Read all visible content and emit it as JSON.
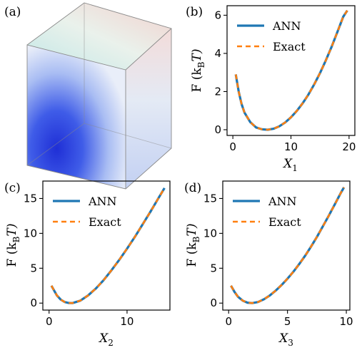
{
  "panels": [
    {
      "label": "(a)"
    },
    {
      "label": "(b)"
    },
    {
      "label": "(c)"
    },
    {
      "label": "(d)"
    }
  ],
  "colors": {
    "ann": "#1f77b4",
    "exact": "#ff7f0e"
  },
  "chart_data": [
    {
      "type": "heatmap",
      "panel": "(a)",
      "description_visible": "3D cube volume render, blue low region bottom-front, red/white high region top-back"
    },
    {
      "type": "line",
      "panel": "(b)",
      "xlabel": "X",
      "xlabel_sub": "1",
      "ylabel": "F (k",
      "ylabel_sub": "B",
      "ylabel_tail": "T)",
      "xlim": [
        -1,
        21
      ],
      "ylim": [
        -0.3,
        6.5
      ],
      "xticks": [
        0,
        10,
        20
      ],
      "yticks": [
        0,
        2,
        4,
        6
      ],
      "legend": [
        "ANN",
        "Exact"
      ],
      "series": [
        {
          "name": "ANN",
          "x": [
            0.5,
            1,
            1.5,
            2,
            3,
            4,
            5,
            6,
            7,
            8,
            9,
            10,
            11,
            12,
            13,
            14,
            15,
            16,
            17,
            18,
            19,
            19.7
          ],
          "y": [
            2.9,
            2.0,
            1.35,
            0.9,
            0.4,
            0.12,
            0.02,
            0.0,
            0.05,
            0.18,
            0.38,
            0.65,
            0.98,
            1.38,
            1.84,
            2.37,
            2.97,
            3.63,
            4.35,
            5.13,
            5.92,
            6.25
          ]
        },
        {
          "name": "Exact",
          "x": [
            0.5,
            1,
            1.5,
            2,
            3,
            4,
            5,
            6,
            7,
            8,
            9,
            10,
            11,
            12,
            13,
            14,
            15,
            16,
            17,
            18,
            19,
            19.7
          ],
          "y": [
            2.9,
            2.0,
            1.35,
            0.9,
            0.4,
            0.12,
            0.02,
            0.0,
            0.05,
            0.18,
            0.38,
            0.65,
            0.98,
            1.38,
            1.84,
            2.37,
            2.97,
            3.63,
            4.35,
            5.13,
            5.92,
            6.25
          ]
        }
      ]
    },
    {
      "type": "line",
      "panel": "(c)",
      "xlabel": "X",
      "xlabel_sub": "2",
      "ylabel": "F (k",
      "ylabel_sub": "B",
      "ylabel_tail": "T)",
      "xlim": [
        -0.8,
        15.5
      ],
      "ylim": [
        -1,
        17.5
      ],
      "xticks": [
        0,
        10
      ],
      "yticks": [
        0,
        5,
        10,
        15
      ],
      "legend": [
        "ANN",
        "Exact"
      ],
      "series": [
        {
          "name": "ANN",
          "x": [
            0.3,
            0.7,
            1,
            1.5,
            2,
            2.5,
            3,
            4,
            5,
            6,
            7,
            8,
            9,
            10,
            11,
            12,
            13,
            14,
            14.8
          ],
          "y": [
            2.5,
            1.7,
            1.1,
            0.5,
            0.15,
            0.02,
            0.0,
            0.35,
            1.1,
            2.1,
            3.3,
            4.7,
            6.2,
            7.8,
            9.5,
            11.3,
            13.1,
            15.0,
            16.5
          ]
        },
        {
          "name": "Exact",
          "x": [
            0.3,
            0.7,
            1,
            1.5,
            2,
            2.5,
            3,
            4,
            5,
            6,
            7,
            8,
            9,
            10,
            11,
            12,
            13,
            14,
            14.8
          ],
          "y": [
            2.5,
            1.7,
            1.1,
            0.5,
            0.15,
            0.02,
            0.0,
            0.35,
            1.1,
            2.1,
            3.3,
            4.7,
            6.2,
            7.8,
            9.5,
            11.3,
            13.1,
            15.0,
            16.5
          ]
        }
      ]
    },
    {
      "type": "line",
      "panel": "(d)",
      "xlabel": "X",
      "xlabel_sub": "3",
      "ylabel": "F (k",
      "ylabel_sub": "B",
      "ylabel_tail": "T)",
      "xlim": [
        -0.5,
        10.3
      ],
      "ylim": [
        -1,
        17.5
      ],
      "xticks": [
        0,
        5,
        10
      ],
      "yticks": [
        0,
        5,
        10,
        15
      ],
      "legend": [
        "ANN",
        "Exact"
      ],
      "series": [
        {
          "name": "ANN",
          "x": [
            0.2,
            0.5,
            0.8,
            1.2,
            1.6,
            2,
            2.5,
            3,
            3.5,
            4,
            4.5,
            5,
            5.5,
            6,
            6.5,
            7,
            7.5,
            8,
            8.5,
            9,
            9.5,
            9.8
          ],
          "y": [
            2.5,
            1.6,
            0.9,
            0.35,
            0.06,
            0.0,
            0.15,
            0.55,
            1.1,
            1.8,
            2.6,
            3.5,
            4.5,
            5.6,
            6.8,
            8.1,
            9.5,
            11.0,
            12.5,
            14.1,
            15.7,
            16.6
          ]
        },
        {
          "name": "Exact",
          "x": [
            0.2,
            0.5,
            0.8,
            1.2,
            1.6,
            2,
            2.5,
            3,
            3.5,
            4,
            4.5,
            5,
            5.5,
            6,
            6.5,
            7,
            7.5,
            8,
            8.5,
            9,
            9.5,
            9.8
          ],
          "y": [
            2.5,
            1.6,
            0.9,
            0.35,
            0.06,
            0.0,
            0.15,
            0.55,
            1.1,
            1.8,
            2.6,
            3.5,
            4.5,
            5.6,
            6.8,
            8.1,
            9.5,
            11.0,
            12.5,
            14.1,
            15.7,
            16.6
          ]
        }
      ]
    }
  ]
}
